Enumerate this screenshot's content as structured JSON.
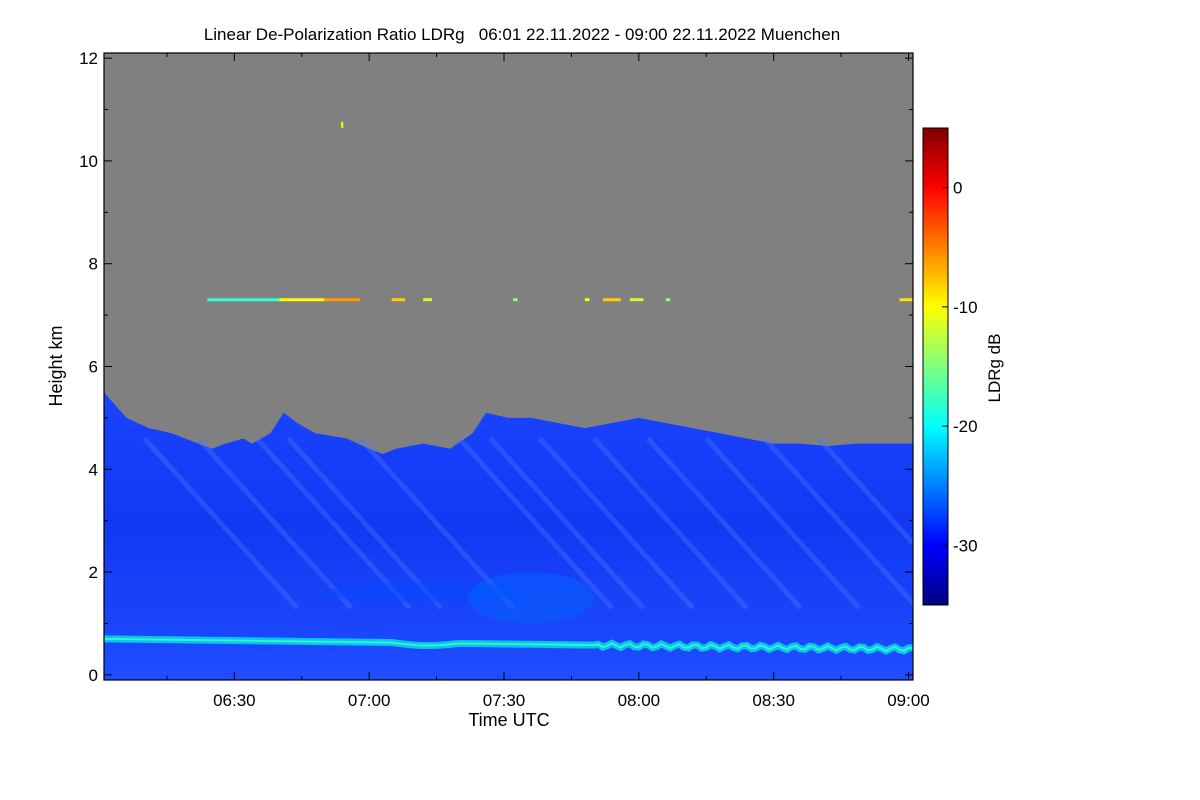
{
  "chart_data": {
    "type": "heatmap",
    "title": "Linear De-Polarization Ratio LDRg   06:01 22.11.2022 - 09:00 22.11.2022 Muenchen",
    "xlabel": "Time UTC",
    "ylabel": "Height km",
    "colorbar_label": "LDRg dB",
    "x_range_minutes_utc": [
      361,
      541
    ],
    "x_ticks": [
      {
        "label": "06:30",
        "minutes": 390
      },
      {
        "label": "07:00",
        "minutes": 420
      },
      {
        "label": "07:30",
        "minutes": 450
      },
      {
        "label": "08:00",
        "minutes": 480
      },
      {
        "label": "08:30",
        "minutes": 510
      },
      {
        "label": "09:00",
        "minutes": 540
      }
    ],
    "y_range_km": [
      -0.1,
      12.1
    ],
    "y_ticks": [
      0,
      2,
      4,
      6,
      8,
      10,
      12
    ],
    "colorbar_range_db": [
      -35,
      5
    ],
    "colorbar_ticks": [
      0,
      -10,
      -20,
      -30
    ],
    "no_signal_color": "#808080",
    "colormap": [
      "#00007f",
      "#0000ff",
      "#007fff",
      "#00ffff",
      "#7fff7f",
      "#ffff00",
      "#ff7f00",
      "#ff0000",
      "#7f0000"
    ],
    "cloud_top_profile": {
      "time_minutes": [
        361,
        366,
        371,
        376,
        382,
        385,
        388,
        392,
        394,
        398,
        401,
        404,
        408,
        415,
        420,
        423,
        426,
        432,
        438,
        443,
        446,
        451,
        456,
        462,
        468,
        474,
        480,
        486,
        492,
        498,
        504,
        510,
        516,
        522,
        528,
        534,
        541
      ],
      "top_km": [
        5.5,
        5.0,
        4.8,
        4.7,
        4.5,
        4.4,
        4.5,
        4.6,
        4.5,
        4.7,
        5.1,
        4.9,
        4.7,
        4.6,
        4.4,
        4.3,
        4.4,
        4.5,
        4.4,
        4.7,
        5.1,
        5.0,
        5.0,
        4.9,
        4.8,
        4.9,
        5.0,
        4.9,
        4.8,
        4.7,
        4.6,
        4.5,
        4.5,
        4.45,
        4.5,
        4.5,
        4.5
      ],
      "ldr_db": -30
    },
    "layers": [
      {
        "name": "aerosol/precipitation column",
        "from_km": 0.0,
        "to_km": "cloud_top",
        "ldr_db": -30
      },
      {
        "name": "boundary layer feature",
        "time_minutes": [
          410,
          455
        ],
        "height_km": [
          1.4,
          1.8
        ],
        "ldr_db": -27
      },
      {
        "name": "boundary layer feature",
        "time_minutes": [
          442,
          470
        ],
        "height_km": [
          1.0,
          2.0
        ],
        "ldr_db": -26
      },
      {
        "name": "near-surface liquid layer",
        "height_km": 0.55,
        "thickness_km": 0.15,
        "ldr_db": -22
      },
      {
        "name": "thin cirrus streaks",
        "height_km": 7.3,
        "time_minutes": [
          385,
          541
        ],
        "ldr_db": -12
      },
      {
        "name": "isolated return",
        "time_minutes": 414,
        "height_km": 10.7,
        "ldr_db": -10
      }
    ]
  }
}
